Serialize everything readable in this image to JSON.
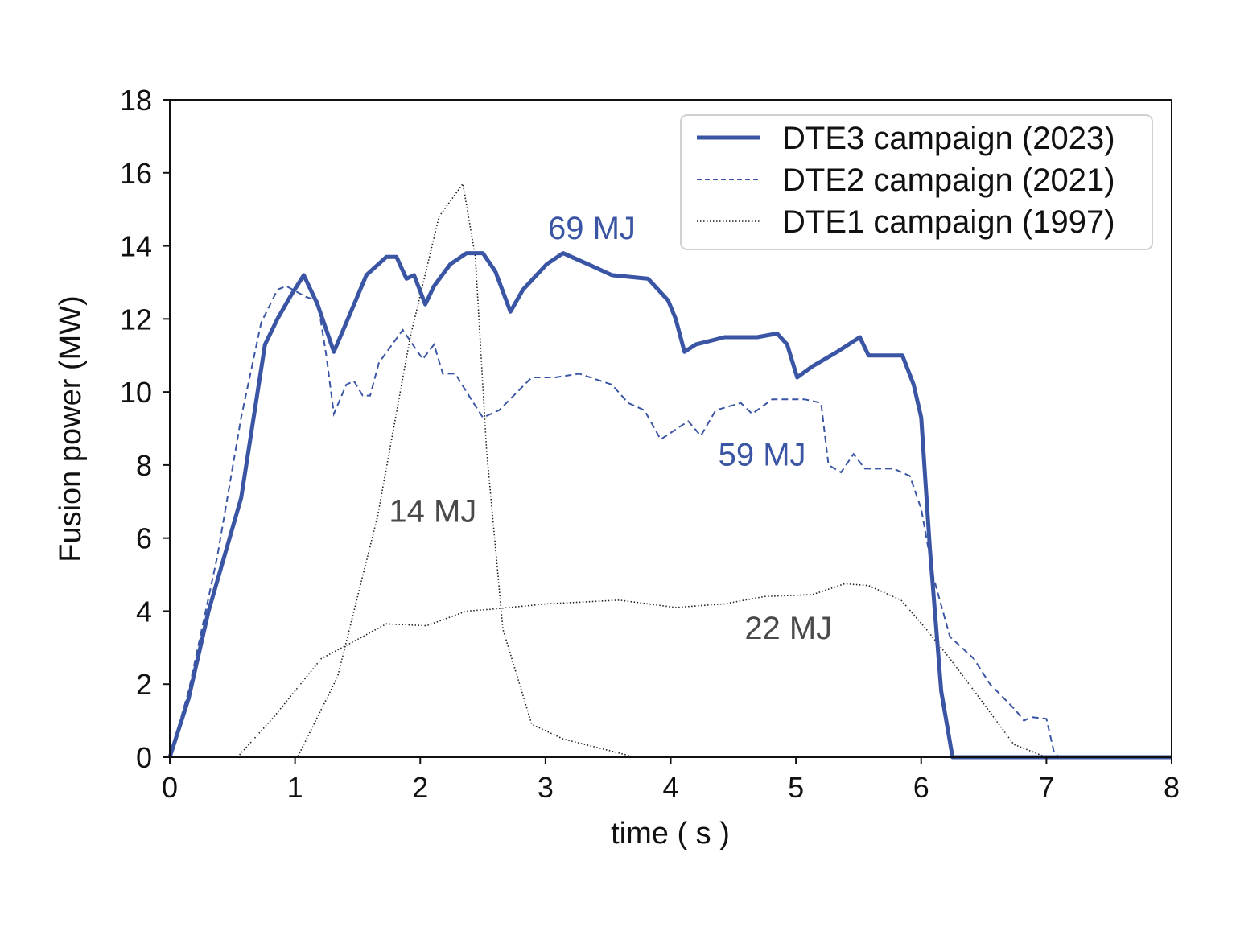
{
  "chart_data": {
    "type": "line",
    "title": "",
    "xlabel": "time  ( s )",
    "ylabel": "Fusion power (MW)",
    "xlim": [
      0,
      8
    ],
    "ylim": [
      0,
      18
    ],
    "xticks": [
      "0",
      "1",
      "2",
      "3",
      "4",
      "5",
      "6",
      "7",
      "8"
    ],
    "yticks": [
      "0",
      "2",
      "4",
      "6",
      "8",
      "10",
      "12",
      "14",
      "16",
      "18"
    ],
    "grid": false,
    "legend_position": "top-right",
    "colors": {
      "blue": "#3a55a4",
      "gray": "#4a4a4a",
      "black": "#222222"
    },
    "series": [
      {
        "name": "DTE3 campaign (2023)",
        "style": "solid",
        "segments": [
          [
            [
              0,
              0
            ],
            [
              0.15,
              1.6
            ],
            [
              0.31,
              4.0
            ],
            [
              0.57,
              7.1
            ],
            [
              0.76,
              11.3
            ],
            [
              0.86,
              12.0
            ],
            [
              0.96,
              12.6
            ],
            [
              1.07,
              13.2
            ],
            [
              1.18,
              12.4
            ],
            [
              1.31,
              11.1
            ],
            [
              1.41,
              11.9
            ],
            [
              1.57,
              13.2
            ],
            [
              1.73,
              13.7
            ],
            [
              1.81,
              13.7
            ],
            [
              1.89,
              13.1
            ],
            [
              1.95,
              13.2
            ],
            [
              2.04,
              12.4
            ],
            [
              2.11,
              12.9
            ],
            [
              2.24,
              13.5
            ],
            [
              2.37,
              13.8
            ],
            [
              2.5,
              13.8
            ],
            [
              2.6,
              13.3
            ],
            [
              2.72,
              12.2
            ],
            [
              2.82,
              12.8
            ],
            [
              3.01,
              13.5
            ],
            [
              3.14,
              13.8
            ],
            [
              3.34,
              13.5
            ],
            [
              3.53,
              13.2
            ],
            [
              3.82,
              13.1
            ],
            [
              3.98,
              12.5
            ],
            [
              4.04,
              12.0
            ],
            [
              4.11,
              11.1
            ],
            [
              4.2,
              11.3
            ],
            [
              4.43,
              11.5
            ],
            [
              4.69,
              11.5
            ],
            [
              4.85,
              11.6
            ],
            [
              4.93,
              11.3
            ],
            [
              5.01,
              10.4
            ],
            [
              5.13,
              10.7
            ],
            [
              5.33,
              11.1
            ],
            [
              5.51,
              11.5
            ],
            [
              5.58,
              11.0
            ],
            [
              5.85,
              11.0
            ],
            [
              5.94,
              10.2
            ],
            [
              6.0,
              9.3
            ],
            [
              6.07,
              5.7
            ],
            [
              6.16,
              1.8
            ],
            [
              6.25,
              0
            ],
            [
              8,
              0
            ]
          ]
        ]
      },
      {
        "name": "DTE2 campaign (2021)",
        "style": "dashed",
        "segments": [
          [
            [
              0,
              0
            ],
            [
              0.15,
              1.8
            ],
            [
              0.38,
              5.5
            ],
            [
              0.57,
              9.3
            ],
            [
              0.73,
              11.9
            ],
            [
              0.86,
              12.8
            ],
            [
              0.93,
              12.9
            ],
            [
              1.09,
              12.6
            ],
            [
              1.18,
              12.5
            ],
            [
              1.25,
              11.0
            ],
            [
              1.31,
              9.4
            ],
            [
              1.41,
              10.2
            ],
            [
              1.47,
              10.3
            ],
            [
              1.54,
              9.9
            ],
            [
              1.6,
              9.9
            ],
            [
              1.67,
              10.8
            ],
            [
              1.86,
              11.7
            ],
            [
              1.94,
              11.3
            ],
            [
              2.02,
              10.9
            ],
            [
              2.11,
              11.3
            ],
            [
              2.18,
              10.5
            ],
            [
              2.28,
              10.5
            ],
            [
              2.37,
              10.0
            ],
            [
              2.5,
              9.3
            ],
            [
              2.63,
              9.5
            ],
            [
              2.89,
              10.4
            ],
            [
              3.08,
              10.4
            ],
            [
              3.27,
              10.5
            ],
            [
              3.53,
              10.2
            ],
            [
              3.66,
              9.7
            ],
            [
              3.79,
              9.5
            ],
            [
              3.92,
              8.7
            ],
            [
              4.14,
              9.2
            ],
            [
              4.24,
              8.8
            ],
            [
              4.36,
              9.5
            ],
            [
              4.56,
              9.7
            ],
            [
              4.65,
              9.4
            ],
            [
              4.81,
              9.8
            ],
            [
              5.07,
              9.8
            ],
            [
              5.2,
              9.7
            ],
            [
              5.26,
              8.0
            ],
            [
              5.36,
              7.8
            ],
            [
              5.46,
              8.3
            ],
            [
              5.55,
              7.9
            ],
            [
              5.78,
              7.9
            ],
            [
              5.91,
              7.7
            ],
            [
              6.0,
              6.8
            ],
            [
              6.1,
              4.9
            ],
            [
              6.23,
              3.3
            ],
            [
              6.42,
              2.7
            ],
            [
              6.55,
              2.0
            ],
            [
              6.75,
              1.3
            ],
            [
              6.82,
              1.0
            ],
            [
              6.88,
              1.1
            ],
            [
              7.0,
              1.05
            ],
            [
              7.06,
              0.15
            ],
            [
              7.1,
              0
            ],
            [
              8,
              0
            ]
          ]
        ]
      },
      {
        "name": "DTE1 campaign (1997)",
        "style": "dotted",
        "segments": [
          [
            [
              0.9,
              0
            ],
            [
              1.02,
              0
            ],
            [
              1.34,
              2.2
            ],
            [
              1.66,
              6.6
            ],
            [
              1.92,
              11.5
            ],
            [
              2.15,
              14.8
            ],
            [
              2.34,
              15.7
            ],
            [
              2.44,
              13.7
            ],
            [
              2.53,
              8.4
            ],
            [
              2.66,
              3.5
            ],
            [
              2.89,
              0.9
            ],
            [
              3.14,
              0.5
            ],
            [
              3.72,
              0
            ]
          ],
          [
            [
              0.54,
              0
            ],
            [
              0.83,
              1.1
            ],
            [
              1.21,
              2.7
            ],
            [
              1.54,
              3.3
            ],
            [
              1.73,
              3.65
            ],
            [
              2.05,
              3.6
            ],
            [
              2.37,
              4.0
            ],
            [
              2.56,
              4.05
            ],
            [
              3.01,
              4.2
            ],
            [
              3.59,
              4.3
            ],
            [
              4.04,
              4.1
            ],
            [
              4.43,
              4.2
            ],
            [
              4.75,
              4.4
            ],
            [
              5.13,
              4.45
            ],
            [
              5.39,
              4.75
            ],
            [
              5.58,
              4.7
            ],
            [
              5.84,
              4.3
            ],
            [
              6.03,
              3.55
            ],
            [
              6.23,
              2.7
            ],
            [
              6.48,
              1.55
            ],
            [
              6.74,
              0.35
            ],
            [
              7.0,
              0
            ]
          ]
        ]
      }
    ],
    "annotations": [
      {
        "text": "69 MJ",
        "x": 3.37,
        "y": 14.5,
        "color": "#3a55a4"
      },
      {
        "text": "59 MJ",
        "x": 4.73,
        "y": 8.3,
        "color": "#3a55a4"
      },
      {
        "text": "14 MJ",
        "x": 2.1,
        "y": 6.75,
        "color": "#4a4a4a"
      },
      {
        "text": "22 MJ",
        "x": 4.94,
        "y": 3.55,
        "color": "#4a4a4a"
      }
    ]
  }
}
